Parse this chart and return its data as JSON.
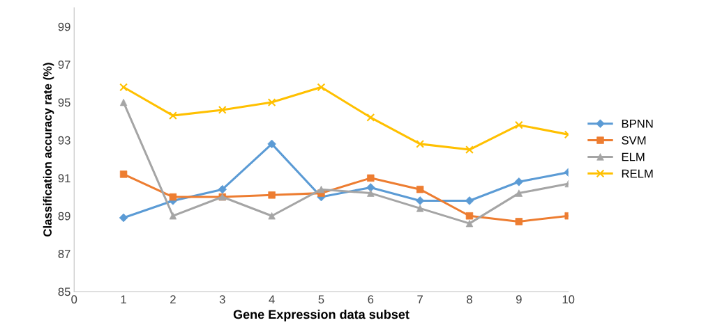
{
  "chart_data": {
    "type": "line",
    "xlabel": "Gene Expression data subset",
    "ylabel": "Classification accuracy rate (%)",
    "x": [
      1,
      2,
      3,
      4,
      5,
      6,
      7,
      8,
      9,
      10
    ],
    "xlim": [
      0,
      10
    ],
    "xticks": [
      0,
      1,
      2,
      3,
      4,
      5,
      6,
      7,
      8,
      9,
      10
    ],
    "ylim": [
      85,
      100
    ],
    "yticks": [
      85,
      87,
      89,
      91,
      93,
      95,
      97,
      99
    ],
    "grid": false,
    "legend": "right",
    "series": [
      {
        "name": "BPNN",
        "color": "#5b9bd5",
        "marker": "diamond",
        "values": [
          88.9,
          89.8,
          90.4,
          92.8,
          90.0,
          90.5,
          89.8,
          89.8,
          90.8,
          91.3
        ]
      },
      {
        "name": "SVM",
        "color": "#ed7d31",
        "marker": "square",
        "values": [
          91.2,
          90.0,
          90.0,
          90.1,
          90.2,
          91.0,
          90.4,
          89.0,
          88.7,
          89.0
        ]
      },
      {
        "name": "ELM",
        "color": "#a5a5a5",
        "marker": "triangle",
        "values": [
          95.0,
          89.0,
          90.0,
          89.0,
          90.4,
          90.2,
          89.4,
          88.6,
          90.2,
          90.7
        ]
      },
      {
        "name": "RELM",
        "color": "#ffc000",
        "marker": "cross",
        "values": [
          95.8,
          94.3,
          94.6,
          95.0,
          95.8,
          94.2,
          92.8,
          92.5,
          93.8,
          93.3
        ]
      }
    ]
  }
}
